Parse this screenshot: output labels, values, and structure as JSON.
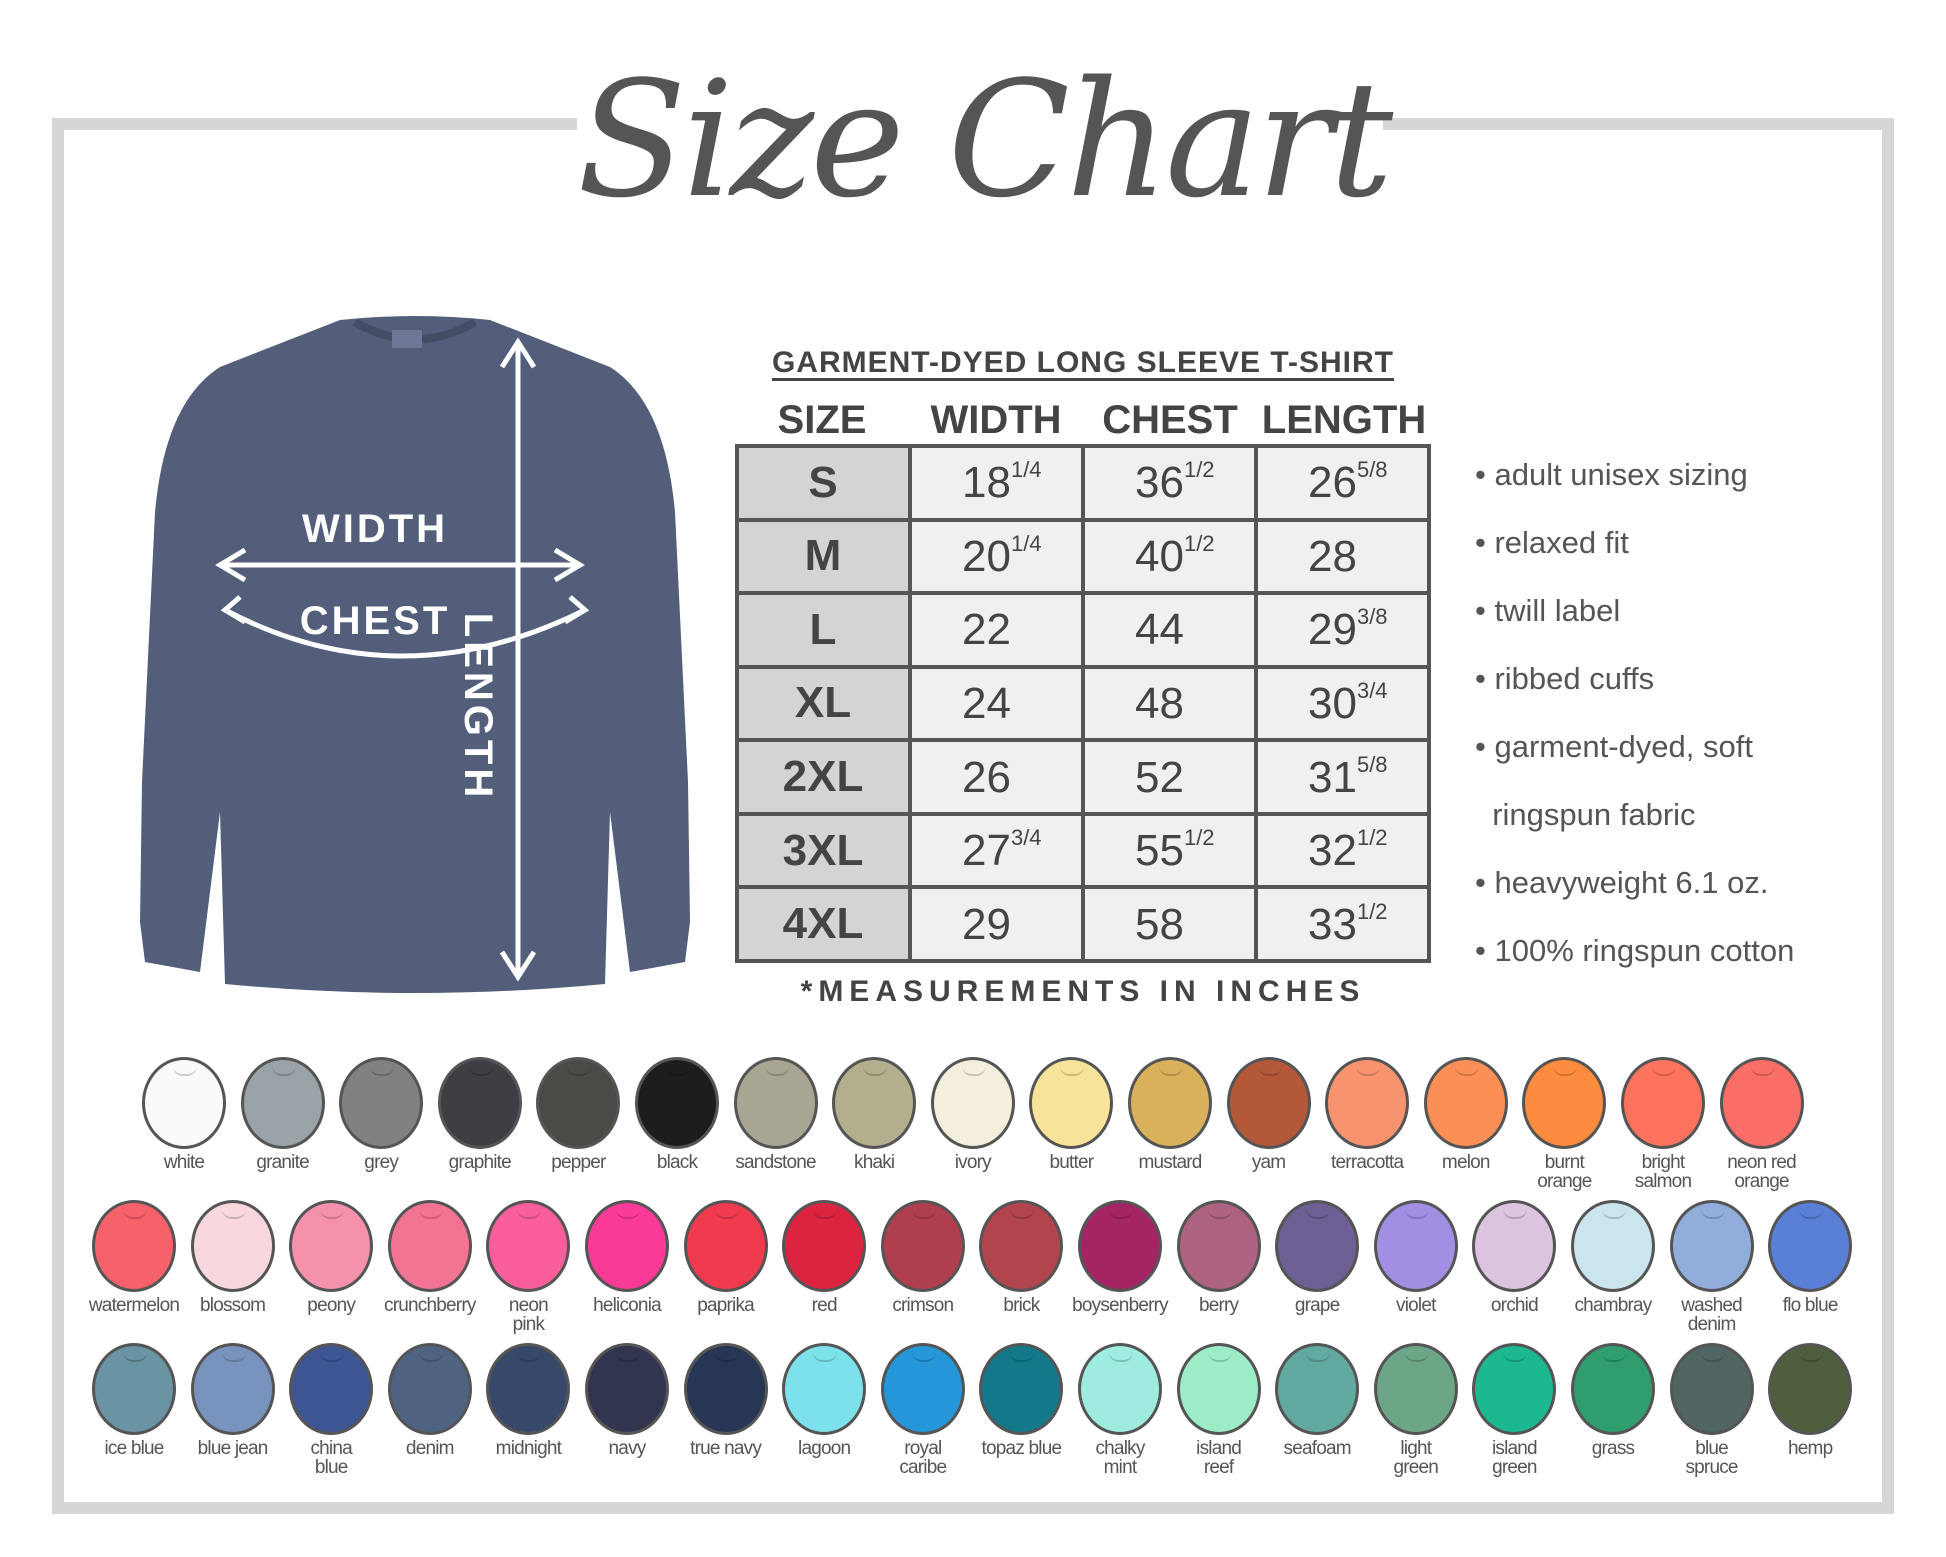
{
  "title": "Size Chart",
  "shirt": {
    "color": "#535e7a",
    "labels": {
      "width": "WIDTH",
      "chest": "CHEST",
      "length": "LENGTH"
    }
  },
  "table": {
    "title": "GARMENT-DYED LONG SLEEVE T-SHIRT",
    "headers": [
      "SIZE",
      "WIDTH",
      "CHEST",
      "LENGTH"
    ],
    "rows": [
      {
        "size": "S",
        "width": [
          "18",
          "1/4"
        ],
        "chest": [
          "36",
          "1/2"
        ],
        "length": [
          "26",
          "5/8"
        ]
      },
      {
        "size": "M",
        "width": [
          "20",
          "1/4"
        ],
        "chest": [
          "40",
          "1/2"
        ],
        "length": [
          "28",
          ""
        ]
      },
      {
        "size": "L",
        "width": [
          "22",
          ""
        ],
        "chest": [
          "44",
          ""
        ],
        "length": [
          "29",
          "3/8"
        ]
      },
      {
        "size": "XL",
        "width": [
          "24",
          ""
        ],
        "chest": [
          "48",
          ""
        ],
        "length": [
          "30",
          "3/4"
        ]
      },
      {
        "size": "2XL",
        "width": [
          "26",
          ""
        ],
        "chest": [
          "52",
          ""
        ],
        "length": [
          "31",
          "5/8"
        ]
      },
      {
        "size": "3XL",
        "width": [
          "27",
          "3/4"
        ],
        "chest": [
          "55",
          "1/2"
        ],
        "length": [
          "32",
          "1/2"
        ]
      },
      {
        "size": "4XL",
        "width": [
          "29",
          ""
        ],
        "chest": [
          "58",
          ""
        ],
        "length": [
          "33",
          "1/2"
        ]
      }
    ],
    "footnote": "*MEASUREMENTS IN INCHES"
  },
  "features": [
    "• adult unisex sizing",
    "• relaxed fit",
    "• twill label",
    "• ribbed cuffs",
    "• garment-dyed, soft",
    "  ringspun fabric",
    "• heavyweight 6.1 oz.",
    "• 100% ringspun cotton"
  ],
  "colors": [
    [
      {
        "name": "white",
        "hex": "#fafafa"
      },
      {
        "name": "granite",
        "hex": "#9aa3a8"
      },
      {
        "name": "grey",
        "hex": "#818181"
      },
      {
        "name": "graphite",
        "hex": "#3f3e44"
      },
      {
        "name": "pepper",
        "hex": "#4a4a47"
      },
      {
        "name": "black",
        "hex": "#1d1d1f"
      },
      {
        "name": "sandstone",
        "hex": "#a8a592"
      },
      {
        "name": "khaki",
        "hex": "#b3ae8c"
      },
      {
        "name": "ivory",
        "hex": "#f4eedc"
      },
      {
        "name": "butter",
        "hex": "#f7e49a"
      },
      {
        "name": "mustard",
        "hex": "#d9b15a"
      },
      {
        "name": "yam",
        "hex": "#b3593a"
      },
      {
        "name": "terracotta",
        "hex": "#f7936e"
      },
      {
        "name": "melon",
        "hex": "#fc8f56"
      },
      {
        "name": "burnt\norange",
        "hex": "#fd8c3e"
      },
      {
        "name": "bright\nsalmon",
        "hex": "#fd735e"
      },
      {
        "name": "neon red\norange",
        "hex": "#fb6e67"
      }
    ],
    [
      {
        "name": "watermelon",
        "hex": "#f7616a"
      },
      {
        "name": "blossom",
        "hex": "#f8d8dd"
      },
      {
        "name": "peony",
        "hex": "#f691ab"
      },
      {
        "name": "crunchberry",
        "hex": "#f27492"
      },
      {
        "name": "neon\npink",
        "hex": "#fa5f9c"
      },
      {
        "name": "heliconia",
        "hex": "#f93b97"
      },
      {
        "name": "paprika",
        "hex": "#ef3b4d"
      },
      {
        "name": "red",
        "hex": "#dc2440"
      },
      {
        "name": "crimson",
        "hex": "#b03f4e"
      },
      {
        "name": "brick",
        "hex": "#b2444e"
      },
      {
        "name": "boysenberry",
        "hex": "#a42464"
      },
      {
        "name": "berry",
        "hex": "#ad627f"
      },
      {
        "name": "grape",
        "hex": "#6d5f94"
      },
      {
        "name": "violet",
        "hex": "#a18fe3"
      },
      {
        "name": "orchid",
        "hex": "#dcc3e0"
      },
      {
        "name": "chambray",
        "hex": "#cbe5ee"
      },
      {
        "name": "washed\ndenim",
        "hex": "#90addb"
      },
      {
        "name": "flo blue",
        "hex": "#5a7fd6"
      }
    ],
    [
      {
        "name": "ice blue",
        "hex": "#6a93a3"
      },
      {
        "name": "blue jean",
        "hex": "#7893be"
      },
      {
        "name": "china\nblue",
        "hex": "#3c5694"
      },
      {
        "name": "denim",
        "hex": "#4f6382"
      },
      {
        "name": "midnight",
        "hex": "#37496b"
      },
      {
        "name": "navy",
        "hex": "#32354f"
      },
      {
        "name": "true navy",
        "hex": "#273654"
      },
      {
        "name": "lagoon",
        "hex": "#7ce1ea"
      },
      {
        "name": "royal\ncaribe",
        "hex": "#2597d8"
      },
      {
        "name": "topaz blue",
        "hex": "#12788a"
      },
      {
        "name": "chalky\nmint",
        "hex": "#9eebdf"
      },
      {
        "name": "island\nreef",
        "hex": "#9cecc7"
      },
      {
        "name": "seafoam",
        "hex": "#62a9a0"
      },
      {
        "name": "light\ngreen",
        "hex": "#6ca687"
      },
      {
        "name": "island\ngreen",
        "hex": "#1cb88f"
      },
      {
        "name": "grass",
        "hex": "#2f9d6e"
      },
      {
        "name": "blue\nspruce",
        "hex": "#516662"
      },
      {
        "name": "hemp",
        "hex": "#4f5e3d"
      }
    ]
  ]
}
